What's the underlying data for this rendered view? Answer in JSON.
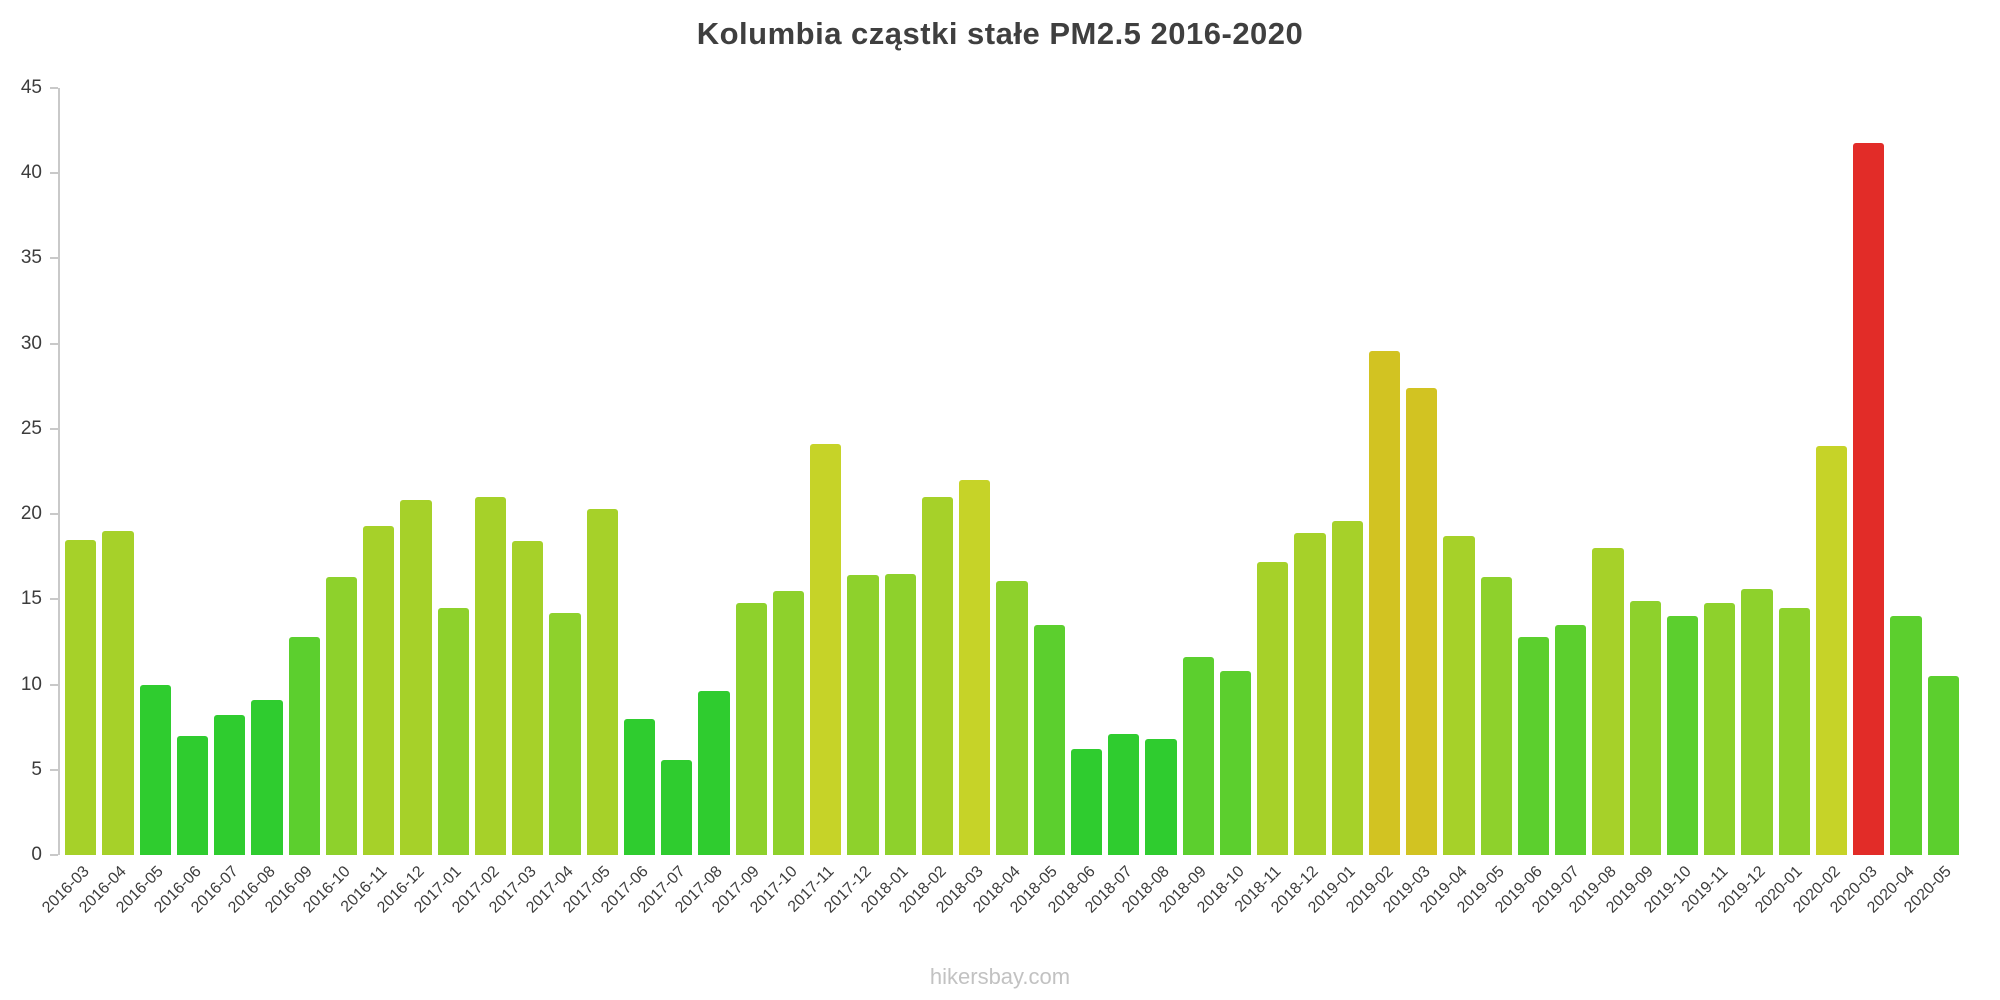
{
  "title": "Kolumbia cząstki stałe PM2.5 2016-2020",
  "footer": "hikersbay.com",
  "chart_data": {
    "type": "bar",
    "title": "Kolumbia cząstki stałe PM2.5 2016-2020",
    "xlabel": "",
    "ylabel": "",
    "ylim": [
      0,
      45
    ],
    "y_ticks": [
      0,
      5,
      10,
      15,
      20,
      25,
      30,
      35,
      40,
      45
    ],
    "grid": false,
    "legend": false,
    "categories": [
      "2016-03",
      "2016-04",
      "2016-05",
      "2016-06",
      "2016-07",
      "2016-08",
      "2016-09",
      "2016-10",
      "2016-11",
      "2016-12",
      "2017-01",
      "2017-02",
      "2017-03",
      "2017-04",
      "2017-05",
      "2017-06",
      "2017-07",
      "2017-08",
      "2017-09",
      "2017-10",
      "2017-11",
      "2017-12",
      "2018-01",
      "2018-02",
      "2018-03",
      "2018-04",
      "2018-05",
      "2018-06",
      "2018-07",
      "2018-08",
      "2018-09",
      "2018-10",
      "2018-11",
      "2018-12",
      "2019-01",
      "2019-02",
      "2019-03",
      "2019-04",
      "2019-05",
      "2019-06",
      "2019-07",
      "2019-08",
      "2019-09",
      "2019-10",
      "2019-11",
      "2019-12",
      "2020-01",
      "2020-02",
      "2020-03",
      "2020-04",
      "2020-05"
    ],
    "values": [
      18.5,
      19,
      10,
      7,
      8.2,
      9.1,
      12.8,
      16.3,
      19.3,
      20.8,
      14.5,
      21,
      18.4,
      14.2,
      20.3,
      8,
      5.6,
      9.6,
      14.8,
      15.5,
      24.1,
      16.4,
      16.5,
      21,
      22,
      16.1,
      13.5,
      6.2,
      7.1,
      6.8,
      11.6,
      10.8,
      17.2,
      18.9,
      19.6,
      29.6,
      27.4,
      18.7,
      16.3,
      12.8,
      13.5,
      18,
      14.9,
      14,
      14.8,
      15.6,
      14.5,
      24,
      41.8,
      14,
      10.5
    ],
    "color_scale": [
      {
        "max": 10,
        "color": "#2fcc2f"
      },
      {
        "max": 14,
        "color": "#5ccf2e"
      },
      {
        "max": 17,
        "color": "#8ed12c"
      },
      {
        "max": 21.5,
        "color": "#a6d129"
      },
      {
        "max": 26,
        "color": "#c6d328"
      },
      {
        "max": 35,
        "color": "#d2c322"
      },
      {
        "max": 999,
        "color": "#e22c28"
      }
    ],
    "axis_color": "#c9c9c9",
    "text_color": "#3c3c3c",
    "title_color": "#3f3f3f",
    "watermark_color": "#c2c2c2"
  }
}
